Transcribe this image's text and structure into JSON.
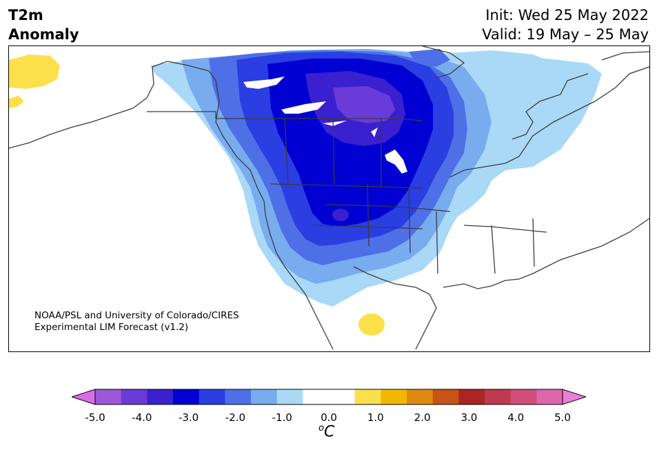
{
  "title": {
    "line1": "T2m",
    "line2": "Anomaly",
    "init": "Init: Wed 25 May 2022",
    "valid": "Valid: 19 May – 25 May"
  },
  "credit": {
    "line1": "NOAA/PSL and University of Colorado/CIRES",
    "line2": "Experimental LIM Forecast (v1.2)"
  },
  "colorbar": {
    "unit_base": "C",
    "unit_sup": "o",
    "colors": [
      "#d66fe6",
      "#9b59d9",
      "#6a3bd8",
      "#3a20cf",
      "#0000d2",
      "#2a3ee2",
      "#4e6fe6",
      "#78acef",
      "#aad8f7",
      "#ffffff",
      "#ffffff",
      "#fbe04b",
      "#f2b705",
      "#de8a10",
      "#c55415",
      "#ac2424",
      "#be3a4e",
      "#d04e7a",
      "#dd66ad",
      "#e880d6"
    ],
    "ticks": [
      "-5.0",
      "-4.0",
      "-3.0",
      "-2.0",
      "-1.0",
      "0.0",
      "1.0",
      "2.0",
      "3.0",
      "4.0",
      "5.0"
    ]
  },
  "regions": [
    {
      "name": "anomaly-minus1",
      "color": "#aad8f7"
    },
    {
      "name": "anomaly-minus1-5",
      "color": "#78acef"
    },
    {
      "name": "anomaly-minus2",
      "color": "#4e6fe6"
    },
    {
      "name": "anomaly-minus2-5",
      "color": "#2a3ee2"
    },
    {
      "name": "anomaly-minus3",
      "color": "#0000d2"
    },
    {
      "name": "anomaly-minus3-5",
      "color": "#3a20cf"
    },
    {
      "name": "anomaly-minus4",
      "color": "#6a3bd8"
    },
    {
      "name": "anomaly-plus1",
      "color": "#fbe04b"
    }
  ]
}
